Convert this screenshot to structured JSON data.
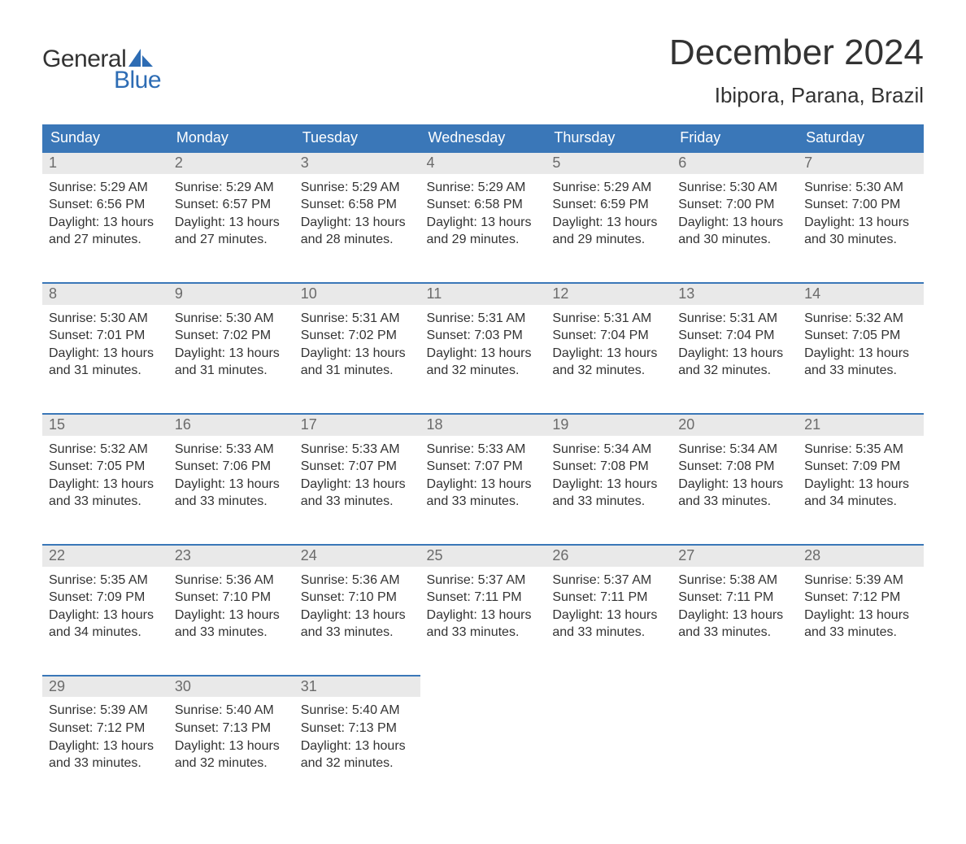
{
  "colors": {
    "brand_blue": "#2d6cb4",
    "header_bg": "#3a77b8",
    "header_text": "#ffffff",
    "daynum_bg": "#e9e9e9",
    "daynum_text": "#6b6b6b",
    "body_text": "#333333",
    "row_border": "#3a77b8",
    "page_bg": "#ffffff"
  },
  "typography": {
    "month_title_fontsize": 44,
    "location_fontsize": 26,
    "header_fontsize": 18,
    "daynum_fontsize": 18,
    "body_fontsize": 16,
    "logo_fontsize": 30
  },
  "logo": {
    "line1": "General",
    "line2": "Blue"
  },
  "title": "December 2024",
  "location": "Ibipora, Parana, Brazil",
  "weekdays": [
    "Sunday",
    "Monday",
    "Tuesday",
    "Wednesday",
    "Thursday",
    "Friday",
    "Saturday"
  ],
  "weeks": [
    [
      {
        "num": "1",
        "sunrise": "Sunrise: 5:29 AM",
        "sunset": "Sunset: 6:56 PM",
        "daylight1": "Daylight: 13 hours",
        "daylight2": "and 27 minutes."
      },
      {
        "num": "2",
        "sunrise": "Sunrise: 5:29 AM",
        "sunset": "Sunset: 6:57 PM",
        "daylight1": "Daylight: 13 hours",
        "daylight2": "and 27 minutes."
      },
      {
        "num": "3",
        "sunrise": "Sunrise: 5:29 AM",
        "sunset": "Sunset: 6:58 PM",
        "daylight1": "Daylight: 13 hours",
        "daylight2": "and 28 minutes."
      },
      {
        "num": "4",
        "sunrise": "Sunrise: 5:29 AM",
        "sunset": "Sunset: 6:58 PM",
        "daylight1": "Daylight: 13 hours",
        "daylight2": "and 29 minutes."
      },
      {
        "num": "5",
        "sunrise": "Sunrise: 5:29 AM",
        "sunset": "Sunset: 6:59 PM",
        "daylight1": "Daylight: 13 hours",
        "daylight2": "and 29 minutes."
      },
      {
        "num": "6",
        "sunrise": "Sunrise: 5:30 AM",
        "sunset": "Sunset: 7:00 PM",
        "daylight1": "Daylight: 13 hours",
        "daylight2": "and 30 minutes."
      },
      {
        "num": "7",
        "sunrise": "Sunrise: 5:30 AM",
        "sunset": "Sunset: 7:00 PM",
        "daylight1": "Daylight: 13 hours",
        "daylight2": "and 30 minutes."
      }
    ],
    [
      {
        "num": "8",
        "sunrise": "Sunrise: 5:30 AM",
        "sunset": "Sunset: 7:01 PM",
        "daylight1": "Daylight: 13 hours",
        "daylight2": "and 31 minutes."
      },
      {
        "num": "9",
        "sunrise": "Sunrise: 5:30 AM",
        "sunset": "Sunset: 7:02 PM",
        "daylight1": "Daylight: 13 hours",
        "daylight2": "and 31 minutes."
      },
      {
        "num": "10",
        "sunrise": "Sunrise: 5:31 AM",
        "sunset": "Sunset: 7:02 PM",
        "daylight1": "Daylight: 13 hours",
        "daylight2": "and 31 minutes."
      },
      {
        "num": "11",
        "sunrise": "Sunrise: 5:31 AM",
        "sunset": "Sunset: 7:03 PM",
        "daylight1": "Daylight: 13 hours",
        "daylight2": "and 32 minutes."
      },
      {
        "num": "12",
        "sunrise": "Sunrise: 5:31 AM",
        "sunset": "Sunset: 7:04 PM",
        "daylight1": "Daylight: 13 hours",
        "daylight2": "and 32 minutes."
      },
      {
        "num": "13",
        "sunrise": "Sunrise: 5:31 AM",
        "sunset": "Sunset: 7:04 PM",
        "daylight1": "Daylight: 13 hours",
        "daylight2": "and 32 minutes."
      },
      {
        "num": "14",
        "sunrise": "Sunrise: 5:32 AM",
        "sunset": "Sunset: 7:05 PM",
        "daylight1": "Daylight: 13 hours",
        "daylight2": "and 33 minutes."
      }
    ],
    [
      {
        "num": "15",
        "sunrise": "Sunrise: 5:32 AM",
        "sunset": "Sunset: 7:05 PM",
        "daylight1": "Daylight: 13 hours",
        "daylight2": "and 33 minutes."
      },
      {
        "num": "16",
        "sunrise": "Sunrise: 5:33 AM",
        "sunset": "Sunset: 7:06 PM",
        "daylight1": "Daylight: 13 hours",
        "daylight2": "and 33 minutes."
      },
      {
        "num": "17",
        "sunrise": "Sunrise: 5:33 AM",
        "sunset": "Sunset: 7:07 PM",
        "daylight1": "Daylight: 13 hours",
        "daylight2": "and 33 minutes."
      },
      {
        "num": "18",
        "sunrise": "Sunrise: 5:33 AM",
        "sunset": "Sunset: 7:07 PM",
        "daylight1": "Daylight: 13 hours",
        "daylight2": "and 33 minutes."
      },
      {
        "num": "19",
        "sunrise": "Sunrise: 5:34 AM",
        "sunset": "Sunset: 7:08 PM",
        "daylight1": "Daylight: 13 hours",
        "daylight2": "and 33 minutes."
      },
      {
        "num": "20",
        "sunrise": "Sunrise: 5:34 AM",
        "sunset": "Sunset: 7:08 PM",
        "daylight1": "Daylight: 13 hours",
        "daylight2": "and 33 minutes."
      },
      {
        "num": "21",
        "sunrise": "Sunrise: 5:35 AM",
        "sunset": "Sunset: 7:09 PM",
        "daylight1": "Daylight: 13 hours",
        "daylight2": "and 34 minutes."
      }
    ],
    [
      {
        "num": "22",
        "sunrise": "Sunrise: 5:35 AM",
        "sunset": "Sunset: 7:09 PM",
        "daylight1": "Daylight: 13 hours",
        "daylight2": "and 34 minutes."
      },
      {
        "num": "23",
        "sunrise": "Sunrise: 5:36 AM",
        "sunset": "Sunset: 7:10 PM",
        "daylight1": "Daylight: 13 hours",
        "daylight2": "and 33 minutes."
      },
      {
        "num": "24",
        "sunrise": "Sunrise: 5:36 AM",
        "sunset": "Sunset: 7:10 PM",
        "daylight1": "Daylight: 13 hours",
        "daylight2": "and 33 minutes."
      },
      {
        "num": "25",
        "sunrise": "Sunrise: 5:37 AM",
        "sunset": "Sunset: 7:11 PM",
        "daylight1": "Daylight: 13 hours",
        "daylight2": "and 33 minutes."
      },
      {
        "num": "26",
        "sunrise": "Sunrise: 5:37 AM",
        "sunset": "Sunset: 7:11 PM",
        "daylight1": "Daylight: 13 hours",
        "daylight2": "and 33 minutes."
      },
      {
        "num": "27",
        "sunrise": "Sunrise: 5:38 AM",
        "sunset": "Sunset: 7:11 PM",
        "daylight1": "Daylight: 13 hours",
        "daylight2": "and 33 minutes."
      },
      {
        "num": "28",
        "sunrise": "Sunrise: 5:39 AM",
        "sunset": "Sunset: 7:12 PM",
        "daylight1": "Daylight: 13 hours",
        "daylight2": "and 33 minutes."
      }
    ],
    [
      {
        "num": "29",
        "sunrise": "Sunrise: 5:39 AM",
        "sunset": "Sunset: 7:12 PM",
        "daylight1": "Daylight: 13 hours",
        "daylight2": "and 33 minutes."
      },
      {
        "num": "30",
        "sunrise": "Sunrise: 5:40 AM",
        "sunset": "Sunset: 7:13 PM",
        "daylight1": "Daylight: 13 hours",
        "daylight2": "and 32 minutes."
      },
      {
        "num": "31",
        "sunrise": "Sunrise: 5:40 AM",
        "sunset": "Sunset: 7:13 PM",
        "daylight1": "Daylight: 13 hours",
        "daylight2": "and 32 minutes."
      },
      null,
      null,
      null,
      null
    ]
  ]
}
